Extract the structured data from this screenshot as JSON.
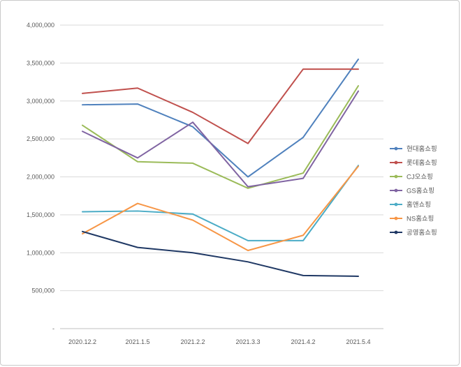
{
  "chart_data": {
    "type": "line",
    "title": "",
    "x": [
      "2020.12.2",
      "2021.1.5",
      "2021.2.2",
      "2021.3.3",
      "2021.4.2",
      "2021.5.4"
    ],
    "series": [
      {
        "name": "현대홈쇼핑",
        "color": "#4F81BD",
        "values": [
          2950000,
          2960000,
          2660000,
          2000000,
          2520000,
          3550000
        ]
      },
      {
        "name": "롯데홈쇼핑",
        "color": "#C0504D",
        "values": [
          3100000,
          3170000,
          2850000,
          2440000,
          3420000,
          3420000
        ]
      },
      {
        "name": "CJ오쇼핑",
        "color": "#9BBB59",
        "values": [
          2680000,
          2200000,
          2180000,
          1850000,
          2050000,
          3200000
        ]
      },
      {
        "name": "GS홈쇼핑",
        "color": "#8064A2",
        "values": [
          2600000,
          2250000,
          2720000,
          1870000,
          1980000,
          3130000
        ]
      },
      {
        "name": "홈앤쇼핑",
        "color": "#4BACC6",
        "values": [
          1540000,
          1550000,
          1510000,
          1160000,
          1160000,
          2150000
        ]
      },
      {
        "name": "NS홈쇼핑",
        "color": "#F79646",
        "values": [
          1250000,
          1650000,
          1430000,
          1030000,
          1230000,
          2140000
        ]
      },
      {
        "name": "공영홈쇼핑",
        "color": "#1F3864",
        "values": [
          1280000,
          1070000,
          1000000,
          880000,
          700000,
          690000
        ]
      }
    ],
    "ylim": [
      0,
      4000000
    ],
    "ytick_step": 500000,
    "ytick_labels": [
      "-",
      "500,000",
      "1,000,000",
      "1,500,000",
      "2,000,000",
      "2,500,000",
      "3,000,000",
      "3,500,000",
      "4,000,000"
    ],
    "grid": true,
    "legend_position": "right",
    "colors": {
      "gridline": "#d9d9d9",
      "axis_line": "#bfbfbf",
      "tick_text": "#595959",
      "frame_border": "#c9c9c9"
    }
  }
}
